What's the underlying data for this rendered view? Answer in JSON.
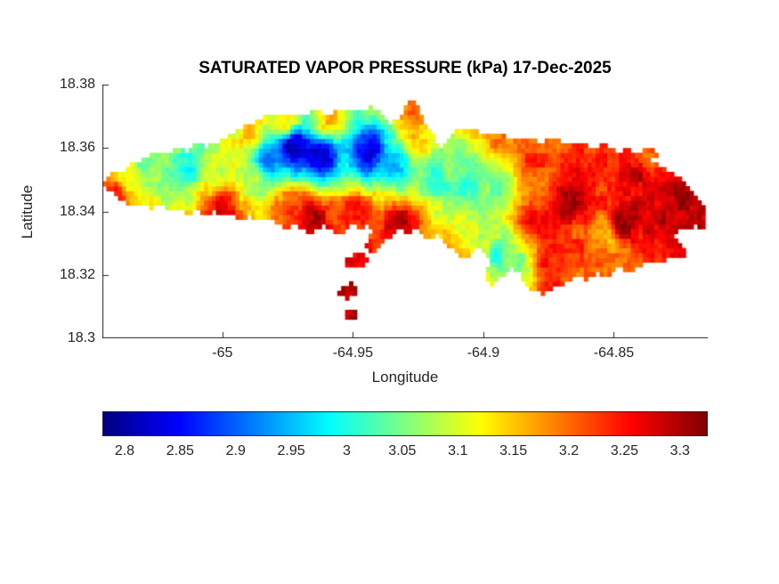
{
  "chart_data": {
    "type": "heatmap",
    "title": "SATURATED VAPOR PRESSURE (kPa) 17-Dec-2025",
    "xlabel": "Longitude",
    "ylabel": "Latitude",
    "xlim": [
      -65.046,
      -64.814
    ],
    "ylim": [
      18.3,
      18.38
    ],
    "xticks": [
      -65,
      -64.95,
      -64.9,
      -64.85
    ],
    "xtick_labels": [
      "-65",
      "-64.95",
      "-64.9",
      "-64.85"
    ],
    "yticks": [
      18.38,
      18.36,
      18.34,
      18.32,
      18.3
    ],
    "ytick_labels": [
      "18.38",
      "18.36",
      "18.34",
      "18.32",
      "18.3"
    ],
    "colormap": "jet",
    "value_range": [
      2.78,
      3.325
    ],
    "colorbar": {
      "orientation": "horizontal",
      "ticks": [
        2.8,
        2.85,
        2.9,
        2.95,
        3,
        3.05,
        3.1,
        3.15,
        3.2,
        3.25,
        3.3
      ],
      "tick_labels": [
        "2.8",
        "2.85",
        "2.9",
        "2.95",
        "3",
        "3.05",
        "3.1",
        "3.15",
        "3.2",
        "3.25",
        "3.3"
      ]
    },
    "grid_cell_deg": 0.0015,
    "noise_amplitude": [
      0.018,
      0.022
    ],
    "island_outline": [
      [
        -65.0457,
        18.3488
      ],
      [
        -65.0422,
        18.3525
      ],
      [
        -65.0382,
        18.3516
      ],
      [
        -65.0347,
        18.355
      ],
      [
        -65.03,
        18.3567
      ],
      [
        -65.0266,
        18.3589
      ],
      [
        -65.0218,
        18.3578
      ],
      [
        -65.0177,
        18.3604
      ],
      [
        -65.0136,
        18.3589
      ],
      [
        -65.0095,
        18.3623
      ],
      [
        -65.0061,
        18.3606
      ],
      [
        -65.002,
        18.3618
      ],
      [
        -64.9979,
        18.364
      ],
      [
        -64.9938,
        18.3657
      ],
      [
        -64.989,
        18.3679
      ],
      [
        -64.9836,
        18.3702
      ],
      [
        -64.9767,
        18.3713
      ],
      [
        -64.9699,
        18.3702
      ],
      [
        -64.9651,
        18.3719
      ],
      [
        -64.9597,
        18.3707
      ],
      [
        -64.9542,
        18.3724
      ],
      [
        -64.9488,
        18.3713
      ],
      [
        -64.9433,
        18.373
      ],
      [
        -64.9392,
        18.3707
      ],
      [
        -64.9358,
        18.3679
      ],
      [
        -64.9317,
        18.3696
      ],
      [
        -64.9297,
        18.3735
      ],
      [
        -64.9276,
        18.3752
      ],
      [
        -64.9249,
        18.3741
      ],
      [
        -64.9235,
        18.3702
      ],
      [
        -64.9222,
        18.3668
      ],
      [
        -64.9194,
        18.364
      ],
      [
        -64.9167,
        18.3601
      ],
      [
        -64.914,
        18.3618
      ],
      [
        -64.9112,
        18.3651
      ],
      [
        -64.9078,
        18.3668
      ],
      [
        -64.9037,
        18.3657
      ],
      [
        -64.8996,
        18.364
      ],
      [
        -64.8955,
        18.3651
      ],
      [
        -64.8914,
        18.3634
      ],
      [
        -64.8874,
        18.3623
      ],
      [
        -64.8826,
        18.3634
      ],
      [
        -64.8778,
        18.3618
      ],
      [
        -64.873,
        18.3629
      ],
      [
        -64.8682,
        18.3612
      ],
      [
        -64.8635,
        18.3623
      ],
      [
        -64.8587,
        18.3601
      ],
      [
        -64.8539,
        18.3612
      ],
      [
        -64.8491,
        18.3589
      ],
      [
        -64.8444,
        18.3595
      ],
      [
        -64.8396,
        18.3573
      ],
      [
        -64.8348,
        18.3556
      ],
      [
        -64.83,
        18.3533
      ],
      [
        -64.8259,
        18.3511
      ],
      [
        -64.8218,
        18.3483
      ],
      [
        -64.8184,
        18.3449
      ],
      [
        -64.8157,
        18.3415
      ],
      [
        -64.8143,
        18.3376
      ],
      [
        -64.8157,
        18.3342
      ],
      [
        -64.8184,
        18.3359
      ],
      [
        -64.8212,
        18.3337
      ],
      [
        -64.8239,
        18.3348
      ],
      [
        -64.8266,
        18.3326
      ],
      [
        -64.8246,
        18.3298
      ],
      [
        -64.8218,
        18.3275
      ],
      [
        -64.8239,
        18.3247
      ],
      [
        -64.828,
        18.3258
      ],
      [
        -64.8321,
        18.3236
      ],
      [
        -64.8362,
        18.3247
      ],
      [
        -64.8403,
        18.3225
      ],
      [
        -64.8444,
        18.3208
      ],
      [
        -64.8485,
        18.3225
      ],
      [
        -64.8526,
        18.3196
      ],
      [
        -64.8566,
        18.3208
      ],
      [
        -64.8607,
        18.3185
      ],
      [
        -64.8648,
        18.3196
      ],
      [
        -64.8689,
        18.3174
      ],
      [
        -64.873,
        18.3157
      ],
      [
        -64.8771,
        18.314
      ],
      [
        -64.8812,
        18.3152
      ],
      [
        -64.8839,
        18.3174
      ],
      [
        -64.886,
        18.3202
      ],
      [
        -64.8887,
        18.3225
      ],
      [
        -64.8914,
        18.3208
      ],
      [
        -64.8942,
        18.3185
      ],
      [
        -64.8969,
        18.3168
      ],
      [
        -64.8996,
        18.3185
      ],
      [
        -64.8983,
        18.3219
      ],
      [
        -64.8969,
        18.3247
      ],
      [
        -64.899,
        18.3269
      ],
      [
        -64.9017,
        18.3286
      ],
      [
        -64.9044,
        18.3269
      ],
      [
        -64.9071,
        18.3247
      ],
      [
        -64.9099,
        18.3264
      ],
      [
        -64.9126,
        18.3286
      ],
      [
        -64.9153,
        18.3303
      ],
      [
        -64.9181,
        18.3326
      ],
      [
        -64.9208,
        18.3309
      ],
      [
        -64.9235,
        18.3326
      ],
      [
        -64.9262,
        18.3348
      ],
      [
        -64.929,
        18.3331
      ],
      [
        -64.9317,
        18.3348
      ],
      [
        -64.9344,
        18.3331
      ],
      [
        -64.9372,
        18.3309
      ],
      [
        -64.9399,
        18.3286
      ],
      [
        -64.9426,
        18.3269
      ],
      [
        -64.9454,
        18.3286
      ],
      [
        -64.944,
        18.3314
      ],
      [
        -64.9419,
        18.3342
      ],
      [
        -64.9447,
        18.3359
      ],
      [
        -64.9474,
        18.3342
      ],
      [
        -64.9501,
        18.3359
      ],
      [
        -64.9529,
        18.3342
      ],
      [
        -64.9556,
        18.3326
      ],
      [
        -64.9583,
        18.3342
      ],
      [
        -64.961,
        18.3359
      ],
      [
        -64.9638,
        18.3342
      ],
      [
        -64.9665,
        18.3326
      ],
      [
        -64.9692,
        18.3342
      ],
      [
        -64.9726,
        18.3359
      ],
      [
        -64.9761,
        18.3348
      ],
      [
        -64.9795,
        18.3365
      ],
      [
        -64.9829,
        18.3382
      ],
      [
        -64.9863,
        18.3371
      ],
      [
        -64.9897,
        18.3387
      ],
      [
        -64.9931,
        18.3376
      ],
      [
        -64.9965,
        18.3393
      ],
      [
        -65.0,
        18.3382
      ],
      [
        -65.0034,
        18.3399
      ],
      [
        -65.0068,
        18.3387
      ],
      [
        -65.0102,
        18.3404
      ],
      [
        -65.0136,
        18.3393
      ],
      [
        -65.017,
        18.341
      ],
      [
        -65.0204,
        18.3399
      ],
      [
        -65.0238,
        18.3421
      ],
      [
        -65.0272,
        18.341
      ],
      [
        -65.0306,
        18.3427
      ],
      [
        -65.0341,
        18.3415
      ],
      [
        -65.0375,
        18.3432
      ],
      [
        -65.0409,
        18.3449
      ],
      [
        -65.0436,
        18.3466
      ]
    ],
    "islets": [
      [
        [
          -64.9529,
          18.3258
        ],
        [
          -64.9474,
          18.3269
        ],
        [
          -64.9433,
          18.3247
        ],
        [
          -64.9474,
          18.3225
        ],
        [
          -64.9522,
          18.323
        ]
      ],
      [
        [
          -64.9549,
          18.3163
        ],
        [
          -64.9501,
          18.3174
        ],
        [
          -64.9481,
          18.3146
        ],
        [
          -64.9515,
          18.3124
        ],
        [
          -64.9556,
          18.3135
        ]
      ],
      [
        [
          -64.9529,
          18.3084
        ],
        [
          -64.9495,
          18.3095
        ],
        [
          -64.9474,
          18.3073
        ],
        [
          -64.9501,
          18.3051
        ],
        [
          -64.9535,
          18.3062
        ]
      ],
      [
        [
          -64.8403,
          18.3589
        ],
        [
          -64.8355,
          18.3601
        ],
        [
          -64.8321,
          18.3584
        ],
        [
          -64.8355,
          18.3561
        ],
        [
          -64.8396,
          18.3567
        ]
      ]
    ],
    "value_control_points": [
      [
        -64.9726,
        18.3604,
        2.8
      ],
      [
        -64.9624,
        18.3575,
        2.81
      ],
      [
        -64.9436,
        18.3589,
        2.82
      ],
      [
        -64.9829,
        18.3567,
        2.9
      ],
      [
        -64.9334,
        18.3561,
        2.95
      ],
      [
        -64.9181,
        18.3519,
        3.0
      ],
      [
        -64.9044,
        18.3491,
        3.02
      ],
      [
        -64.8942,
        18.3463,
        3.05
      ],
      [
        -64.8942,
        18.3267,
        3.02
      ],
      [
        -64.8874,
        18.3239,
        3.05
      ],
      [
        -64.8993,
        18.3309,
        3.08
      ],
      [
        -65.0289,
        18.3547,
        3.05
      ],
      [
        -65.0119,
        18.3547,
        3.0
      ],
      [
        -65.0034,
        18.3519,
        3.1
      ],
      [
        -65.0375,
        18.3505,
        3.12
      ],
      [
        -64.9897,
        18.3505,
        3.1
      ],
      [
        -64.9249,
        18.3618,
        3.15
      ],
      [
        -65.0409,
        18.3463,
        3.25
      ],
      [
        -65.0,
        18.3421,
        3.28
      ],
      [
        -64.9658,
        18.3379,
        3.3
      ],
      [
        -64.9317,
        18.3365,
        3.28
      ],
      [
        -64.9078,
        18.3196,
        3.28
      ],
      [
        -64.8737,
        18.3225,
        3.25
      ],
      [
        -64.8669,
        18.3421,
        3.3
      ],
      [
        -64.8464,
        18.3365,
        3.32
      ],
      [
        -64.8259,
        18.3393,
        3.3
      ],
      [
        -64.8396,
        18.3505,
        3.28
      ],
      [
        -64.8805,
        18.3561,
        3.22
      ],
      [
        -64.8601,
        18.3533,
        3.25
      ],
      [
        -64.8157,
        18.3365,
        3.3
      ],
      [
        -64.8942,
        18.3646,
        3.2
      ],
      [
        -64.9215,
        18.3702,
        3.18
      ],
      [
        -64.9283,
        18.3744,
        3.2
      ],
      [
        -64.959,
        18.3688,
        3.15
      ],
      [
        -64.9761,
        18.3688,
        3.12
      ],
      [
        -64.9897,
        18.3646,
        3.15
      ],
      [
        -64.9726,
        18.3407,
        3.25
      ],
      [
        -64.9488,
        18.3393,
        3.25
      ],
      [
        -64.9488,
        18.3247,
        3.25
      ],
      [
        -64.9522,
        18.3146,
        3.28
      ],
      [
        -64.9505,
        18.307,
        3.3
      ],
      [
        -64.8362,
        18.3581,
        3.2
      ],
      [
        -64.8532,
        18.3337,
        3.15
      ],
      [
        -64.8464,
        18.3239,
        3.18
      ],
      [
        -64.8805,
        18.3365,
        3.25
      ],
      [
        -64.8669,
        18.3309,
        3.22
      ],
      [
        -64.9129,
        18.3567,
        3.05
      ]
    ]
  }
}
